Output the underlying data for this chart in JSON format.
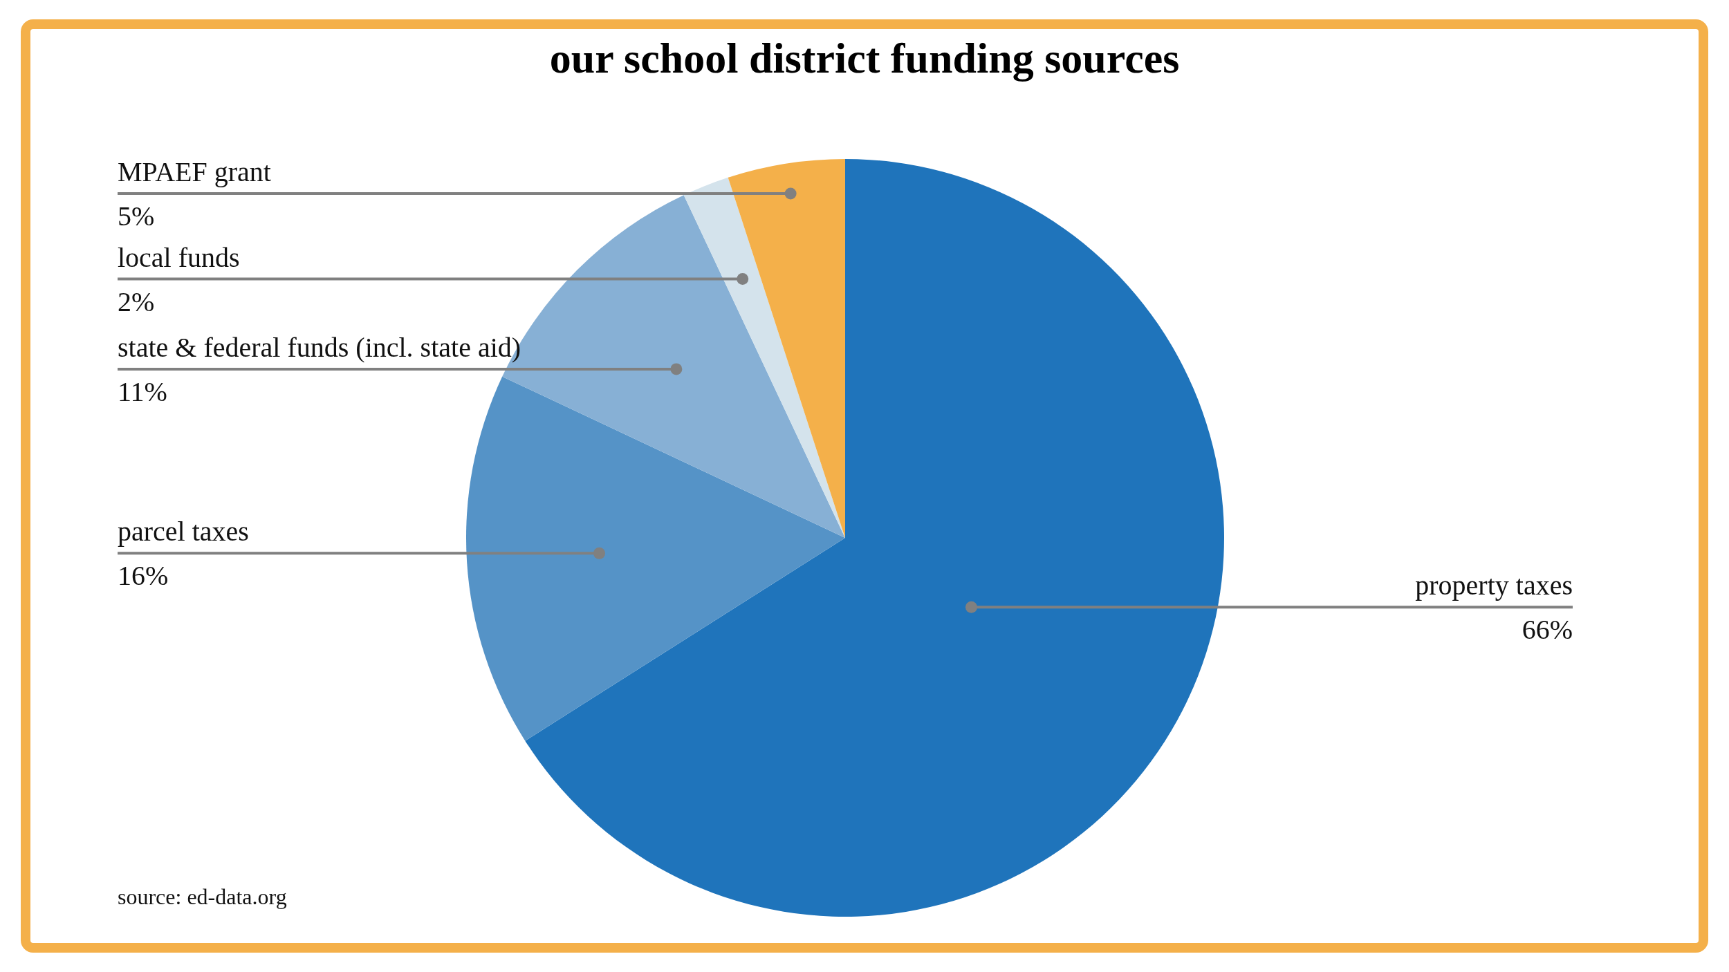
{
  "chart_data": {
    "type": "pie",
    "title": "our school district funding sources",
    "categories": [
      "property taxes",
      "parcel taxes",
      "state & federal funds (incl. state aid)",
      "local funds",
      "MPAEF grant"
    ],
    "values": [
      66,
      16,
      11,
      2,
      5
    ],
    "value_labels": [
      "66%",
      "16%",
      "11%",
      "2%",
      "5%"
    ],
    "colors": [
      "#1f74bb",
      "#5593c7",
      "#87b0d5",
      "#d4e3ec",
      "#f4b04a"
    ],
    "annotations": [
      "source: ed-data.org"
    ]
  }
}
